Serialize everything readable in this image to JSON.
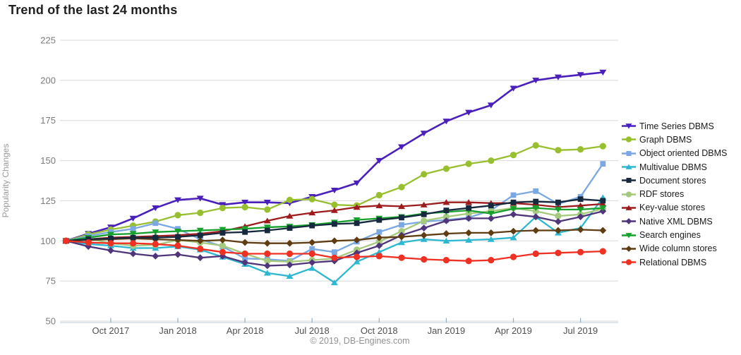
{
  "title": "Trend of the last 24 months",
  "footer": "© 2019, DB-Engines.com",
  "colors": {
    "background": "#ffffff",
    "grid": "#d8d8d8",
    "axis_line": "#c9d7e1",
    "tick": "#8fafc4",
    "title_text": "#1f1f1f",
    "y_tick_text": "#7b7b7b",
    "x_tick_text": "#4f4f4f",
    "y_axis_title_text": "#999999",
    "legend_text": "#1a1a1a",
    "footer_text": "#929292"
  },
  "chart_data": {
    "type": "line",
    "title": "Trend of the last 24 months",
    "xlabel": "",
    "ylabel": "Popularity Changes",
    "ylim": [
      50,
      225
    ],
    "yticks": [
      225,
      200,
      175,
      150,
      125,
      100,
      75,
      50
    ],
    "grid": true,
    "legend_position": "right",
    "n_points": 25,
    "x_tick_labels": [
      "Oct 2017",
      "Jan 2018",
      "Apr 2018",
      "Jul 2018",
      "Oct 2018",
      "Jan 2019",
      "Apr 2019",
      "Jul 2019"
    ],
    "x_tick_indices": [
      2,
      5,
      8,
      11,
      14,
      17,
      20,
      23
    ],
    "series": [
      {
        "name": "Time Series DBMS",
        "color": "#4a1fbc",
        "marker": "triangle-down",
        "values": [
          100,
          104.5,
          108.5,
          114,
          120.5,
          125.5,
          126.5,
          122.5,
          124,
          124,
          123.5,
          127.5,
          131.5,
          136,
          150,
          158.5,
          167,
          174.5,
          180,
          184.5,
          195,
          200,
          202,
          203.5,
          205
        ]
      },
      {
        "name": "Graph DBMS",
        "color": "#97bf2f",
        "marker": "circle",
        "values": [
          100,
          104,
          107,
          109.5,
          112,
          116,
          117.5,
          120.5,
          121,
          119.5,
          125.5,
          126,
          122.5,
          122,
          128.5,
          133.5,
          141.5,
          145,
          148,
          150,
          153.5,
          159.5,
          156.5,
          157,
          159
        ]
      },
      {
        "name": "Object oriented DBMS",
        "color": "#7aa8e2",
        "marker": "square",
        "values": [
          100,
          103,
          105.5,
          107.5,
          111,
          107.5,
          101,
          96.5,
          89,
          88.5,
          87.5,
          95,
          93,
          99.5,
          105.5,
          110,
          112,
          113,
          114.5,
          119,
          128.5,
          131,
          123,
          127.5,
          148
        ]
      },
      {
        "name": "Multivalue DBMS",
        "color": "#2eb7d0",
        "marker": "triangle-up",
        "values": [
          100,
          98,
          97,
          95.5,
          95.5,
          96.5,
          94.5,
          90,
          85.5,
          80,
          78,
          83,
          74,
          87,
          93,
          99,
          101,
          100,
          100.5,
          101,
          102,
          115,
          105,
          108,
          127
        ]
      },
      {
        "name": "Document stores",
        "color": "#17293e",
        "marker": "square",
        "values": [
          100,
          101,
          101.5,
          102,
          102,
          102.5,
          103.5,
          105,
          105.5,
          106.5,
          108,
          109.5,
          110.5,
          111,
          113,
          114.5,
          116.5,
          119,
          120.5,
          122,
          124,
          124.5,
          124,
          126,
          125
        ]
      },
      {
        "name": "RDF stores",
        "color": "#a6ca7d",
        "marker": "circle",
        "values": [
          100,
          101.5,
          98.5,
          97,
          97.5,
          100.5,
          99,
          97,
          92,
          87.5,
          87,
          88,
          89,
          94.5,
          99.5,
          106,
          112.5,
          115,
          117,
          118.5,
          120.5,
          118.5,
          115.5,
          116.5,
          120
        ]
      },
      {
        "name": "Key-value stores",
        "color": "#9d1b1c",
        "marker": "triangle-up",
        "values": [
          100,
          101,
          102,
          102.5,
          103,
          103.5,
          104.5,
          106,
          109,
          112.5,
          115.5,
          117.5,
          119,
          121,
          122,
          121.5,
          122.5,
          124,
          124,
          123.5,
          123.5,
          122.5,
          121,
          122,
          123
        ]
      },
      {
        "name": "Native XML DBMS",
        "color": "#50357b",
        "marker": "diamond",
        "values": [
          100,
          96.5,
          94,
          92,
          90.5,
          91.5,
          89.5,
          90.5,
          86.5,
          84.5,
          85,
          86.5,
          87.5,
          92.5,
          97,
          103.5,
          108,
          112.5,
          114,
          114,
          116.5,
          115,
          112,
          115,
          118.5
        ]
      },
      {
        "name": "Search engines",
        "color": "#16a02c",
        "marker": "triangle-down",
        "values": [
          100,
          102,
          104,
          104.5,
          105.5,
          106,
          106.5,
          107,
          107.5,
          108.5,
          109,
          110,
          111.5,
          113,
          114,
          115,
          117,
          118,
          119,
          117,
          120,
          120.5,
          119.5,
          119.5,
          120.5
        ]
      },
      {
        "name": "Wide column stores",
        "color": "#5f3c11",
        "marker": "diamond",
        "values": [
          100,
          100.5,
          101,
          101.5,
          101,
          100.5,
          100,
          100.5,
          99,
          98.5,
          98.5,
          99,
          100,
          100.5,
          102,
          102.5,
          103.5,
          104.5,
          105,
          105,
          106,
          106.5,
          106.5,
          107,
          106.5
        ]
      },
      {
        "name": "Relational DBMS",
        "color": "#ef3124",
        "marker": "circle",
        "values": [
          100,
          99,
          98.5,
          98.5,
          98,
          97,
          95,
          93,
          92,
          92,
          92,
          92,
          89.5,
          90,
          90.5,
          89.5,
          88.5,
          88,
          87.5,
          88,
          90,
          92,
          92.5,
          93,
          93.5
        ]
      }
    ]
  }
}
